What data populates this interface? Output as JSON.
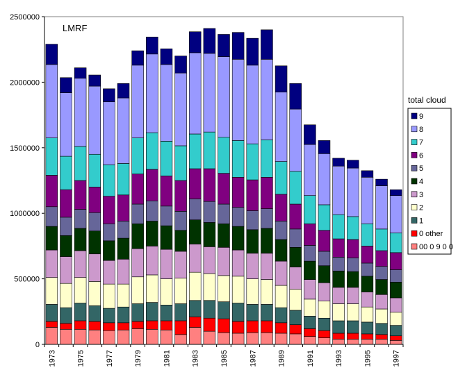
{
  "chart_data": {
    "type": "bar",
    "stacked": true,
    "title": "LMRF",
    "xlabel": "",
    "ylabel": "",
    "ylim": [
      0,
      2500000
    ],
    "yticks": [
      "0",
      "500000",
      "1000000",
      "1500000",
      "2000000",
      "2500000"
    ],
    "grid": false,
    "legend_title": "total cloud",
    "legend_position": "right",
    "categories": [
      "1973",
      "1974",
      "1975",
      "1976",
      "1977",
      "1978",
      "1979",
      "1980",
      "1981",
      "1982",
      "1983",
      "1984",
      "1985",
      "1986",
      "1987",
      "1988",
      "1989",
      "1990",
      "1991",
      "1992",
      "1993",
      "1994",
      "1995",
      "1996",
      "1997"
    ],
    "xtick_labels": [
      "1973",
      "",
      "1975",
      "",
      "1977",
      "",
      "1979",
      "",
      "1981",
      "",
      "1983",
      "",
      "1985",
      "",
      "1987",
      "",
      "1989",
      "",
      "1991",
      "",
      "1993",
      "",
      "1995",
      "",
      "1997"
    ],
    "series": [
      {
        "name": "00 0 9 0 0",
        "color": "#FF8080",
        "values": [
          130000,
          115000,
          115000,
          110000,
          105000,
          110000,
          120000,
          115000,
          110000,
          75000,
          130000,
          100000,
          90000,
          85000,
          90000,
          90000,
          85000,
          80000,
          60000,
          50000,
          40000,
          40000,
          40000,
          40000,
          30000
        ]
      },
      {
        "name": "0 other",
        "color": "#FF0000",
        "values": [
          45000,
          45000,
          65000,
          65000,
          60000,
          55000,
          55000,
          65000,
          70000,
          105000,
          80000,
          100000,
          105000,
          90000,
          90000,
          90000,
          80000,
          70000,
          60000,
          55000,
          45000,
          45000,
          40000,
          35000,
          35000
        ]
      },
      {
        "name": "1",
        "color": "#336666",
        "values": [
          130000,
          120000,
          135000,
          120000,
          110000,
          120000,
          135000,
          140000,
          120000,
          130000,
          125000,
          135000,
          130000,
          140000,
          125000,
          125000,
          115000,
          110000,
          95000,
          95000,
          95000,
          95000,
          90000,
          85000,
          80000
        ]
      },
      {
        "name": "2",
        "color": "#FFFFCC",
        "values": [
          205000,
          185000,
          195000,
          185000,
          185000,
          175000,
          205000,
          210000,
          200000,
          195000,
          215000,
          205000,
          200000,
          205000,
          195000,
          190000,
          170000,
          160000,
          130000,
          130000,
          130000,
          130000,
          115000,
          110000,
          100000
        ]
      },
      {
        "name": "3",
        "color": "#CC99CC",
        "values": [
          210000,
          205000,
          205000,
          210000,
          180000,
          190000,
          215000,
          220000,
          225000,
          205000,
          215000,
          205000,
          215000,
          200000,
          195000,
          200000,
          185000,
          170000,
          150000,
          140000,
          125000,
          125000,
          115000,
          110000,
          110000
        ]
      },
      {
        "name": "4",
        "color": "#003300",
        "values": [
          180000,
          160000,
          170000,
          175000,
          150000,
          160000,
          190000,
          190000,
          180000,
          160000,
          185000,
          185000,
          180000,
          180000,
          180000,
          190000,
          165000,
          150000,
          140000,
          130000,
          125000,
          120000,
          120000,
          115000,
          120000
        ]
      },
      {
        "name": "5",
        "color": "#666699",
        "values": [
          150000,
          140000,
          145000,
          140000,
          130000,
          130000,
          150000,
          155000,
          150000,
          145000,
          160000,
          160000,
          150000,
          145000,
          145000,
          150000,
          140000,
          140000,
          120000,
          110000,
          105000,
          105000,
          100000,
          100000,
          95000
        ]
      },
      {
        "name": "6",
        "color": "#800080",
        "values": [
          240000,
          210000,
          220000,
          195000,
          210000,
          200000,
          230000,
          240000,
          230000,
          235000,
          230000,
          250000,
          235000,
          230000,
          235000,
          240000,
          205000,
          190000,
          165000,
          160000,
          140000,
          140000,
          130000,
          120000,
          130000
        ]
      },
      {
        "name": "7",
        "color": "#33CCCC",
        "values": [
          285000,
          255000,
          260000,
          250000,
          240000,
          240000,
          275000,
          280000,
          265000,
          265000,
          265000,
          280000,
          275000,
          280000,
          275000,
          285000,
          250000,
          250000,
          215000,
          195000,
          185000,
          175000,
          170000,
          165000,
          150000
        ]
      },
      {
        "name": "8",
        "color": "#9999FF",
        "values": [
          560000,
          485000,
          520000,
          520000,
          480000,
          500000,
          555000,
          600000,
          585000,
          555000,
          620000,
          600000,
          615000,
          620000,
          600000,
          615000,
          530000,
          475000,
          390000,
          390000,
          370000,
          370000,
          355000,
          330000,
          285000
        ]
      },
      {
        "name": "9",
        "color": "#000080",
        "values": [
          155000,
          115000,
          80000,
          85000,
          100000,
          110000,
          110000,
          130000,
          120000,
          130000,
          160000,
          190000,
          170000,
          205000,
          205000,
          225000,
          200000,
          195000,
          150000,
          100000,
          60000,
          60000,
          50000,
          50000,
          45000
        ]
      }
    ]
  }
}
